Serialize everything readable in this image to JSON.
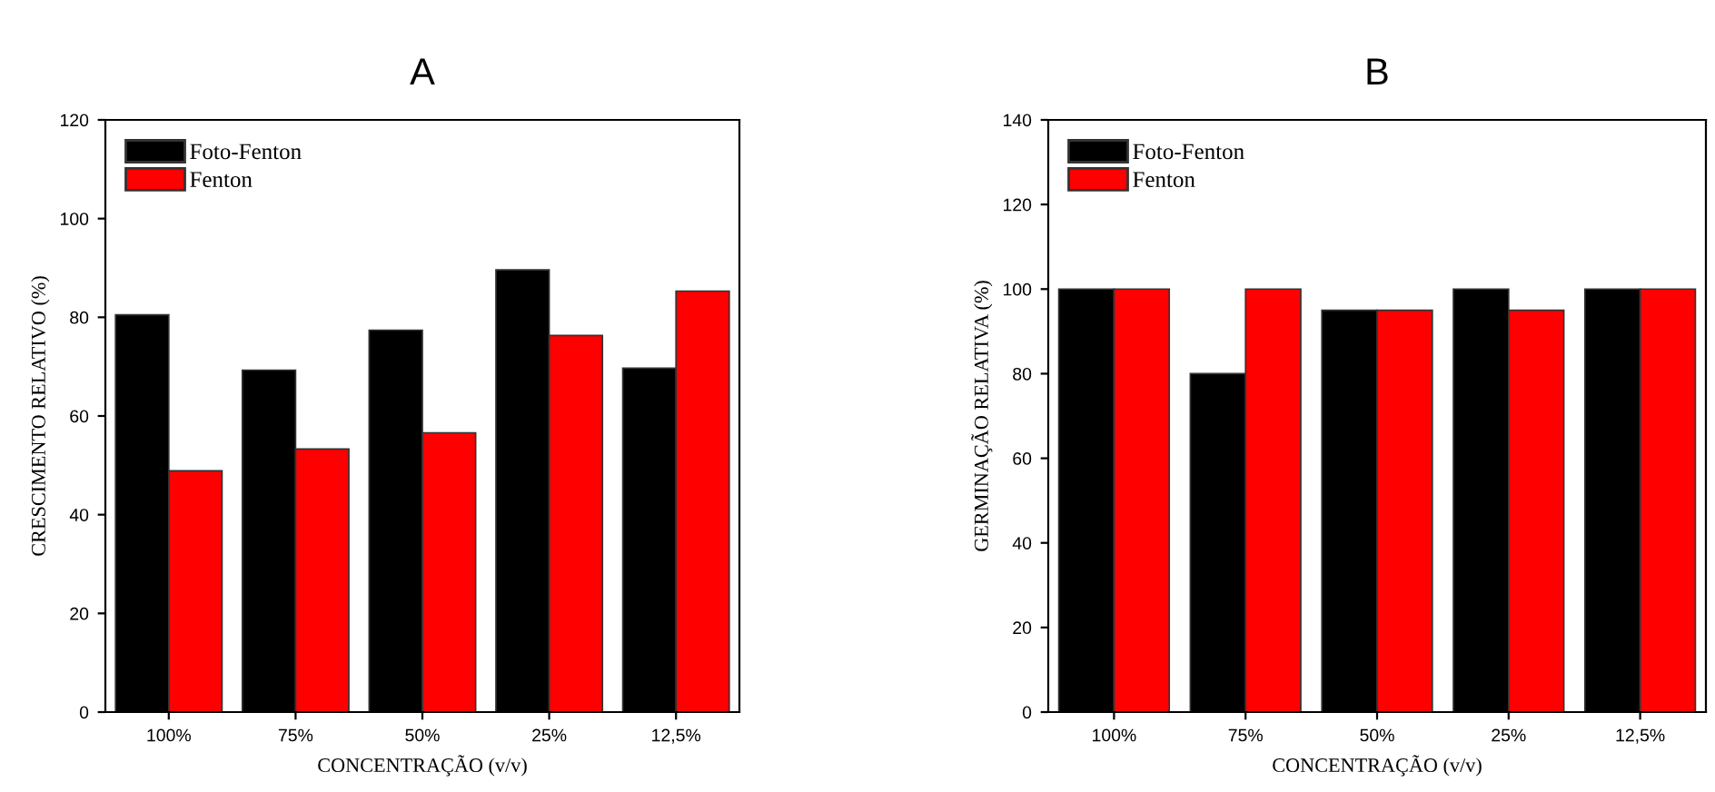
{
  "chart_data": [
    {
      "type": "bar",
      "title": "A",
      "xlabel": "CONCENTRAÇÃO (v/v)",
      "ylabel": "CRESCIMENTO RELATIVO (%)",
      "categories": [
        "100%",
        "75%",
        "50%",
        "25%",
        "12,5%"
      ],
      "series": [
        {
          "name": "Foto-Fenton",
          "color": "#000000",
          "values": [
            80.5,
            69.3,
            77.4,
            89.6,
            69.7
          ]
        },
        {
          "name": "Fenton",
          "color": "#ff0000",
          "values": [
            48.9,
            53.3,
            56.6,
            76.3,
            85.3
          ]
        }
      ],
      "ylim": [
        0,
        120
      ],
      "yticks": [
        0,
        20,
        40,
        60,
        80,
        100,
        120
      ],
      "legend": "top left",
      "grid": false
    },
    {
      "type": "bar",
      "title": "B",
      "xlabel": "CONCENTRAÇÃO (v/v)",
      "ylabel": "GERMINAÇÃO RELATIVA (%)",
      "categories": [
        "100%",
        "75%",
        "50%",
        "25%",
        "12,5%"
      ],
      "series": [
        {
          "name": "Foto-Fenton",
          "color": "#000000",
          "values": [
            100,
            80,
            95,
            100,
            100
          ]
        },
        {
          "name": "Fenton",
          "color": "#ff0000",
          "values": [
            100,
            100,
            95,
            95,
            100
          ]
        }
      ],
      "ylim": [
        0,
        140
      ],
      "yticks": [
        0,
        20,
        40,
        60,
        80,
        100,
        120,
        140
      ],
      "legend": "top left",
      "grid": false
    }
  ]
}
